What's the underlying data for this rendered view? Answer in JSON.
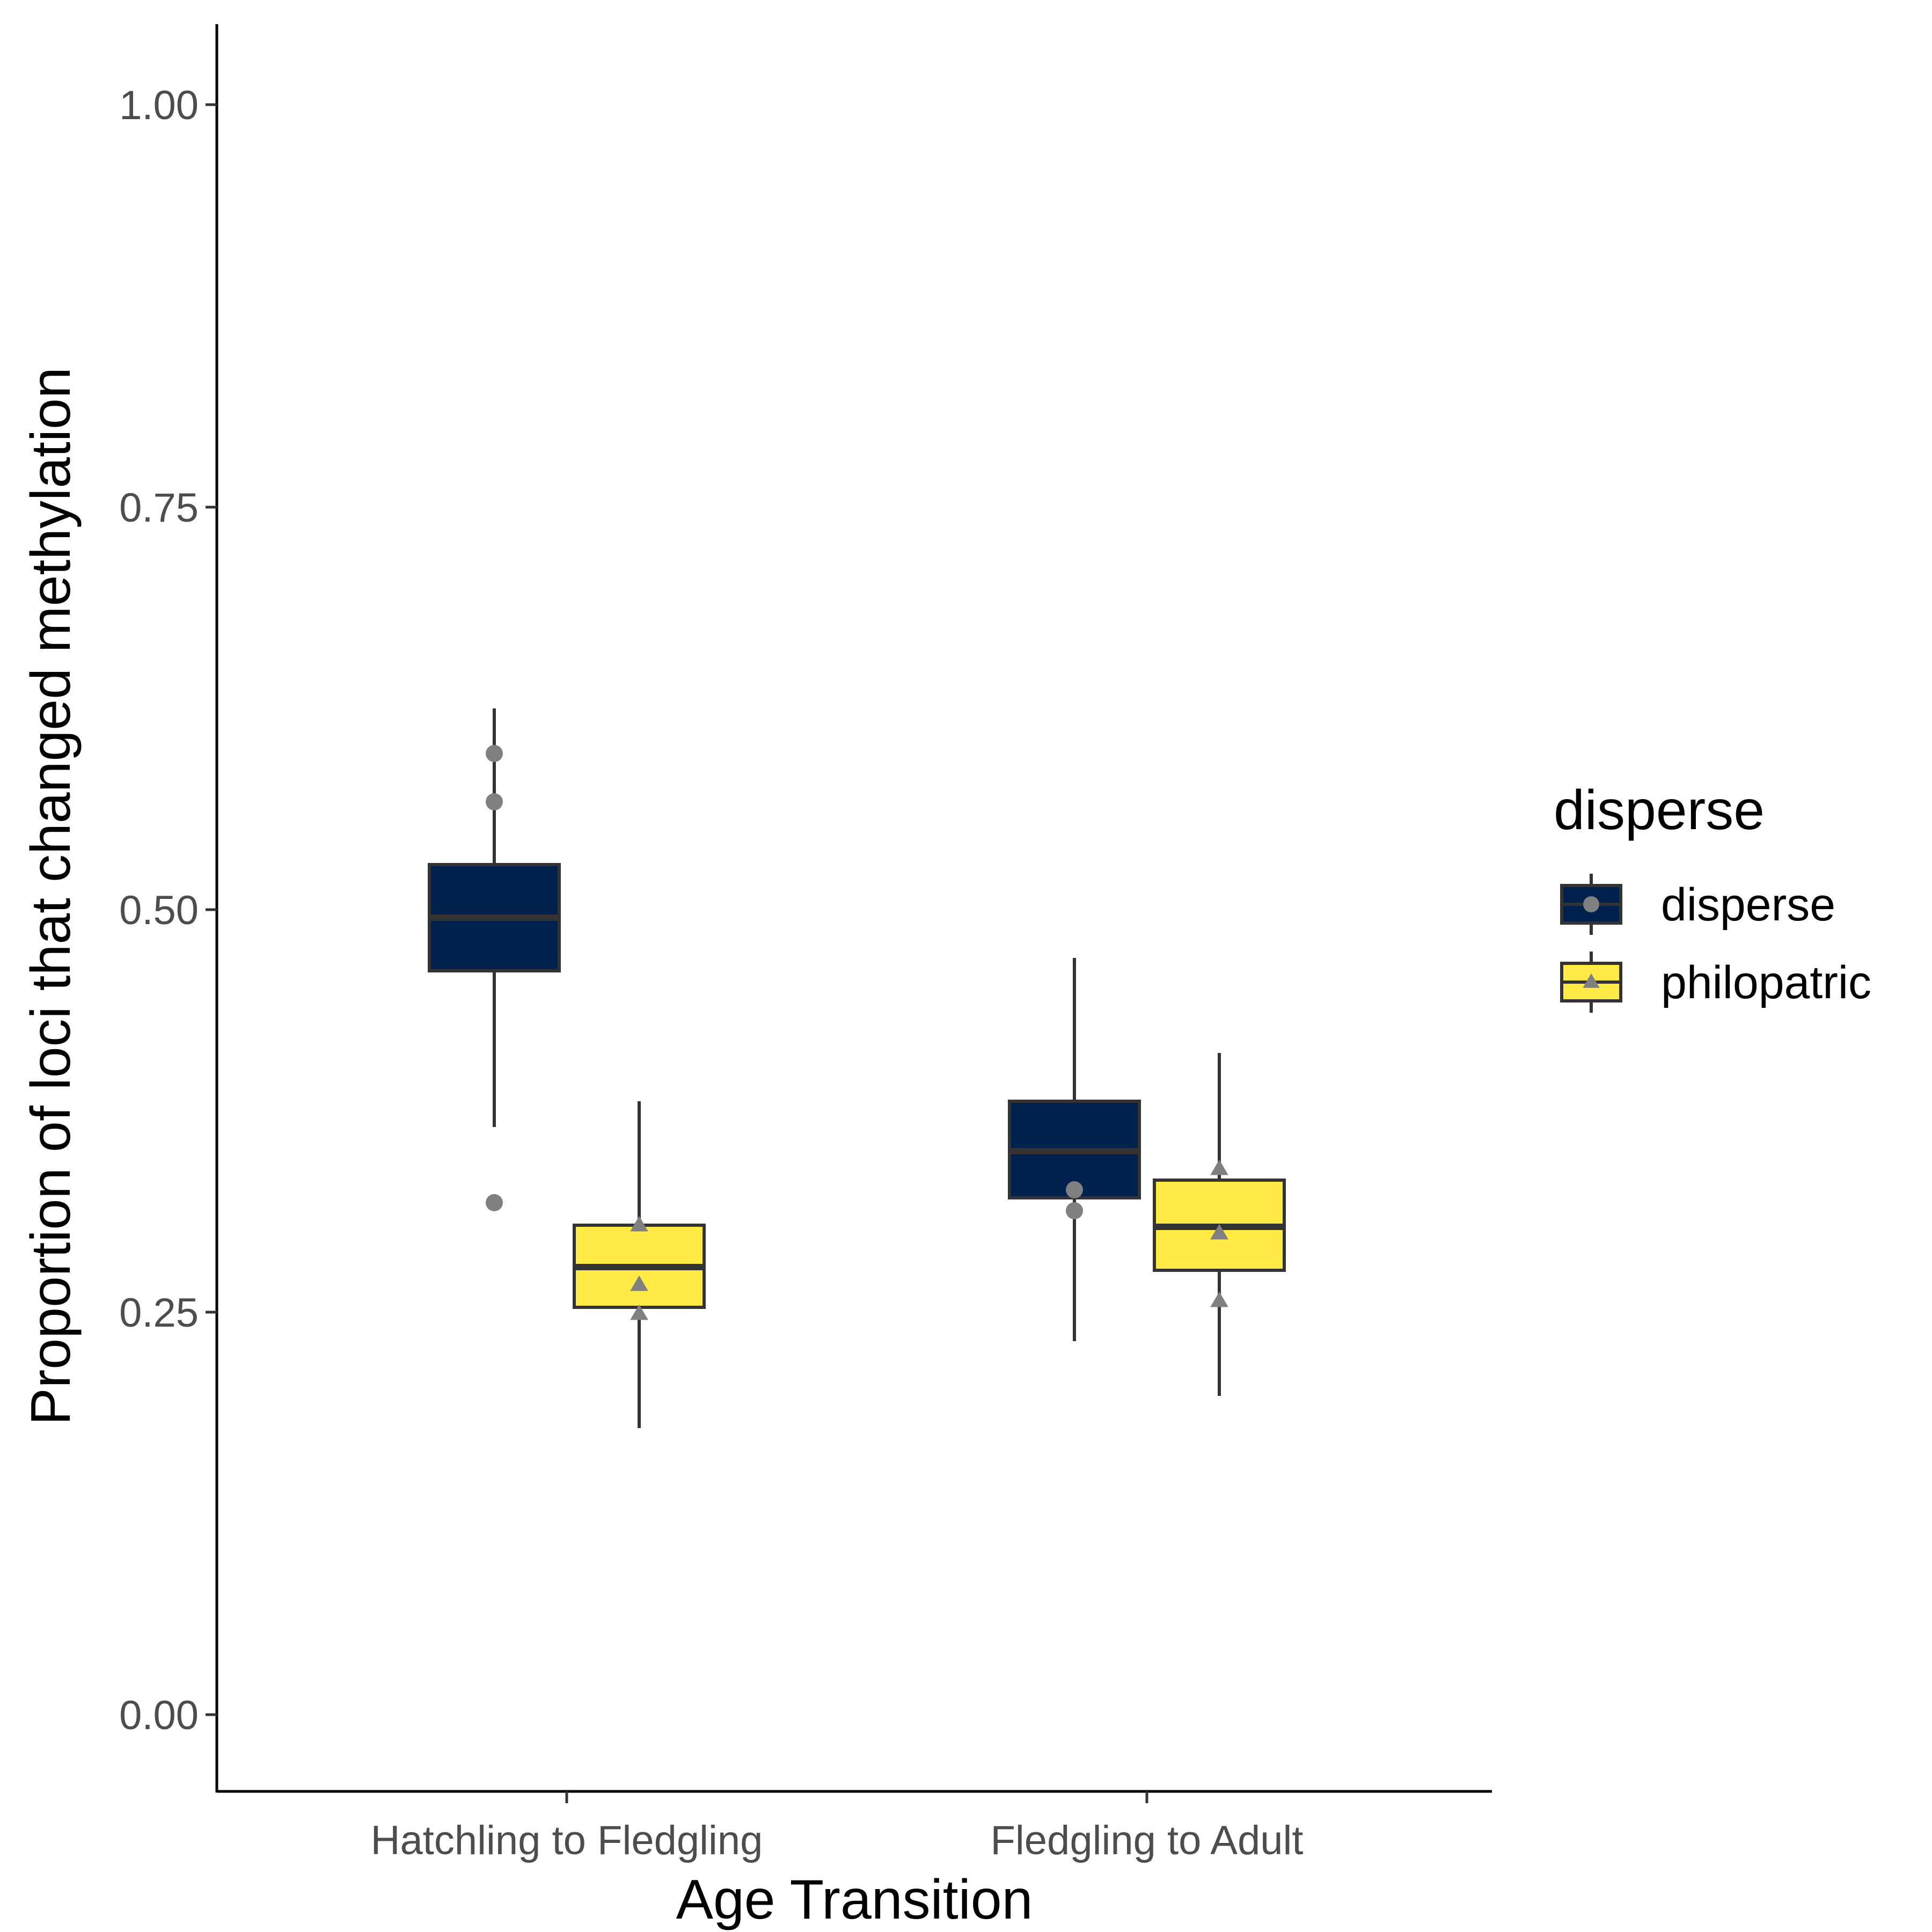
{
  "chart_data": {
    "type": "boxplot",
    "xlabel": "Age Transition",
    "ylabel": "Proportion of loci that changed methylation",
    "ylim": [
      -0.05,
      1.05
    ],
    "yticks": [
      0.0,
      0.25,
      0.5,
      0.75,
      1.0
    ],
    "ytick_labels": [
      "0.00",
      "0.25",
      "0.50",
      "0.75",
      "1.00"
    ],
    "categories": [
      "Hatchling to Fledgling",
      "Fledgling to Adult"
    ],
    "grid": false,
    "legend": {
      "title": "disperse",
      "position": "right",
      "entries": [
        {
          "label": "disperse",
          "color": "#00204D",
          "marker": "circle"
        },
        {
          "label": "philopatric",
          "color": "#FFEA46",
          "marker": "triangle"
        }
      ]
    },
    "point_color": "#808080",
    "outline_color": "#333333",
    "series": [
      {
        "name": "disperse",
        "color": "#00204D",
        "marker": "circle",
        "boxes": [
          {
            "category": "Hatchling to Fledgling",
            "whisker_low": 0.365,
            "q1": 0.462,
            "median": 0.495,
            "q3": 0.528,
            "whisker_high": 0.625,
            "points": [
              0.597,
              0.567,
              0.318
            ]
          },
          {
            "category": "Fledgling to Adult",
            "whisker_low": 0.232,
            "q1": 0.321,
            "median": 0.35,
            "q3": 0.381,
            "whisker_high": 0.47,
            "points": [
              0.326,
              0.313
            ]
          }
        ]
      },
      {
        "name": "philopatric",
        "color": "#FFEA46",
        "marker": "triangle",
        "boxes": [
          {
            "category": "Hatchling to Fledgling",
            "whisker_low": 0.178,
            "q1": 0.253,
            "median": 0.278,
            "q3": 0.304,
            "whisker_high": 0.381,
            "points": [
              0.304,
              0.267,
              0.249
            ]
          },
          {
            "category": "Fledgling to Adult",
            "whisker_low": 0.198,
            "q1": 0.276,
            "median": 0.303,
            "q3": 0.332,
            "whisker_high": 0.411,
            "points": [
              0.339,
              0.299,
              0.257
            ]
          }
        ]
      }
    ]
  }
}
